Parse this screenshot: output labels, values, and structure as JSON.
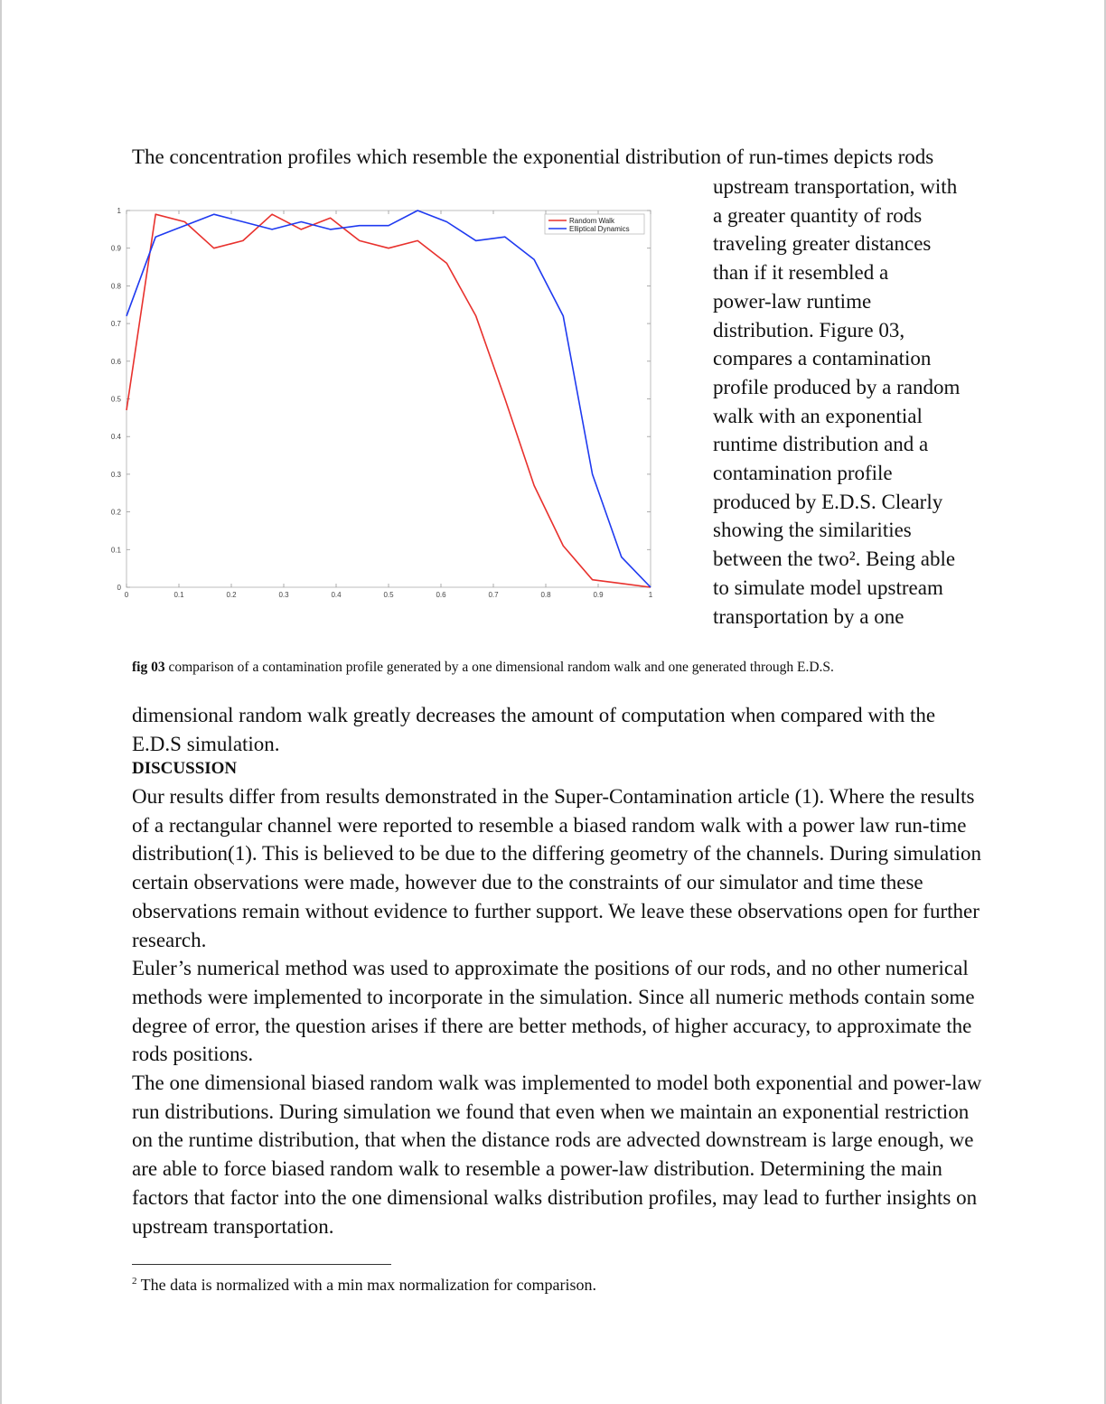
{
  "paragraph_top": "The concentration profiles which resemble the exponential distribution of run-times depicts rods",
  "side_lines": [
    "upstream transportation, with",
    "a greater quantity of rods",
    "traveling greater distances",
    "than if it resembled a",
    "power-law runtime",
    "distribution. Figure 03,",
    "compares a contamination",
    "profile produced by a random",
    "walk with an exponential",
    "runtime distribution and a",
    "contamination profile",
    "produced by E.D.S. Clearly",
    "showing the similarities",
    "between the two². Being able",
    "to simulate model upstream",
    "transportation by a one"
  ],
  "caption": {
    "label": "fig 03",
    "text": " comparison of a contamination profile generated by a one dimensional random walk and one generated through E.D.S."
  },
  "paragraph_continued": "dimensional random walk greatly decreases the amount of computation when compared with the E.D.S simulation.",
  "heading": "DISCUSSION",
  "body_paragraphs": [
    "Our results differ from results demonstrated in the Super-Contamination article (1). Where the results of a rectangular channel were reported to resemble a biased random walk with a power law run-time distribution(1). This is believed to be due to the differing geometry of the channels. During simulation certain observations were made, however due to the constraints of our simulator and time these observations remain without evidence to further support. We leave these observations open for further research.",
    "Euler’s numerical method was used to approximate the positions of our rods, and no other numerical methods were implemented to incorporate in the simulation. Since all numeric methods contain some degree of error, the question arises if there are better methods, of higher accuracy, to approximate the rods positions.",
    "The one dimensional biased random walk was implemented to model both exponential and power-law run distributions. During simulation we found that even when we maintain an exponential restriction on the runtime distribution, that when the distance rods are advected downstream is large enough, we are able to force biased random walk to resemble a power-law distribution. Determining the main factors that factor into the one dimensional walks distribution profiles, may lead to further insights on upstream transportation."
  ],
  "footnote": {
    "mark": "2",
    "text": " The data is normalized with a min max normalization for comparison."
  },
  "chart_data": {
    "type": "line",
    "title": "",
    "xlabel": "",
    "ylabel": "",
    "xlim": [
      0,
      1
    ],
    "ylim": [
      0,
      1
    ],
    "x_ticks": [
      "0",
      "0.1",
      "0.2",
      "0.3",
      "0.4",
      "0.5",
      "0.6",
      "0.7",
      "0.8",
      "0.9",
      "1"
    ],
    "y_ticks": [
      "0",
      "0.1",
      "0.2",
      "0.3",
      "0.4",
      "0.5",
      "0.6",
      "0.7",
      "0.8",
      "0.9",
      "1"
    ],
    "legend_position": "top-right",
    "grid": false,
    "series": [
      {
        "name": "Random Walk",
        "color": "#e8312d",
        "x": [
          0,
          0.0556,
          0.1111,
          0.1667,
          0.2222,
          0.2778,
          0.3333,
          0.3889,
          0.4444,
          0.5,
          0.5556,
          0.6111,
          0.6667,
          0.7222,
          0.7778,
          0.8333,
          0.8889,
          0.9444,
          1
        ],
        "y": [
          0.47,
          0.99,
          0.97,
          0.9,
          0.92,
          0.99,
          0.95,
          0.98,
          0.92,
          0.9,
          0.92,
          0.86,
          0.72,
          0.5,
          0.27,
          0.11,
          0.02,
          0.01,
          0
        ]
      },
      {
        "name": "Elliptical Dynamics",
        "color": "#1f3af0",
        "x": [
          0,
          0.0556,
          0.1111,
          0.1667,
          0.2222,
          0.2778,
          0.3333,
          0.3889,
          0.4444,
          0.5,
          0.5556,
          0.6111,
          0.6667,
          0.7222,
          0.7778,
          0.8333,
          0.8889,
          0.9444,
          1
        ],
        "y": [
          0.72,
          0.93,
          0.96,
          0.99,
          0.97,
          0.95,
          0.97,
          0.95,
          0.96,
          0.96,
          1.0,
          0.97,
          0.92,
          0.93,
          0.87,
          0.72,
          0.3,
          0.08,
          0
        ]
      }
    ]
  }
}
